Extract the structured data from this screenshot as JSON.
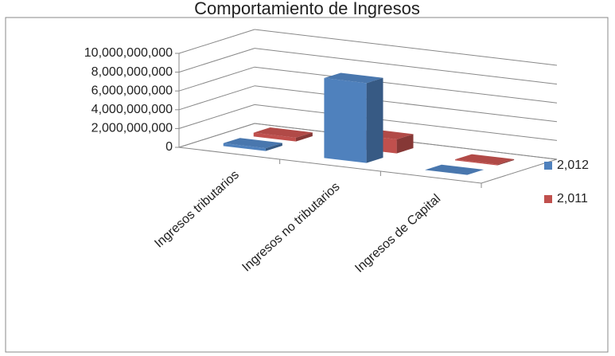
{
  "chart_data": {
    "type": "bar3d",
    "title": "Comportamiento de Ingresos",
    "categories": [
      "Ingresos tributarios",
      "Ingresos no tributarios",
      "Ingresos de Capital"
    ],
    "series": [
      {
        "name": "2,012",
        "color": "#4f81bd",
        "values": [
          300000000,
          8500000000,
          0
        ]
      },
      {
        "name": "2,011",
        "color": "#c0504d",
        "values": [
          400000000,
          1500000000,
          100000000
        ]
      }
    ],
    "ylim": [
      0,
      10000000000
    ],
    "yticks": [
      0,
      {
        "value": 2000000000,
        "label": "2,000,000,000"
      },
      {
        "value": 4000000000,
        "label": "4,000,000,000"
      },
      {
        "value": 6000000000,
        "label": "6,000,000,000"
      },
      {
        "value": 8000000000,
        "label": "8,000,000,000"
      },
      {
        "value": 10000000000,
        "label": "10,000,000,000"
      }
    ],
    "grid": true,
    "legend": "right"
  }
}
